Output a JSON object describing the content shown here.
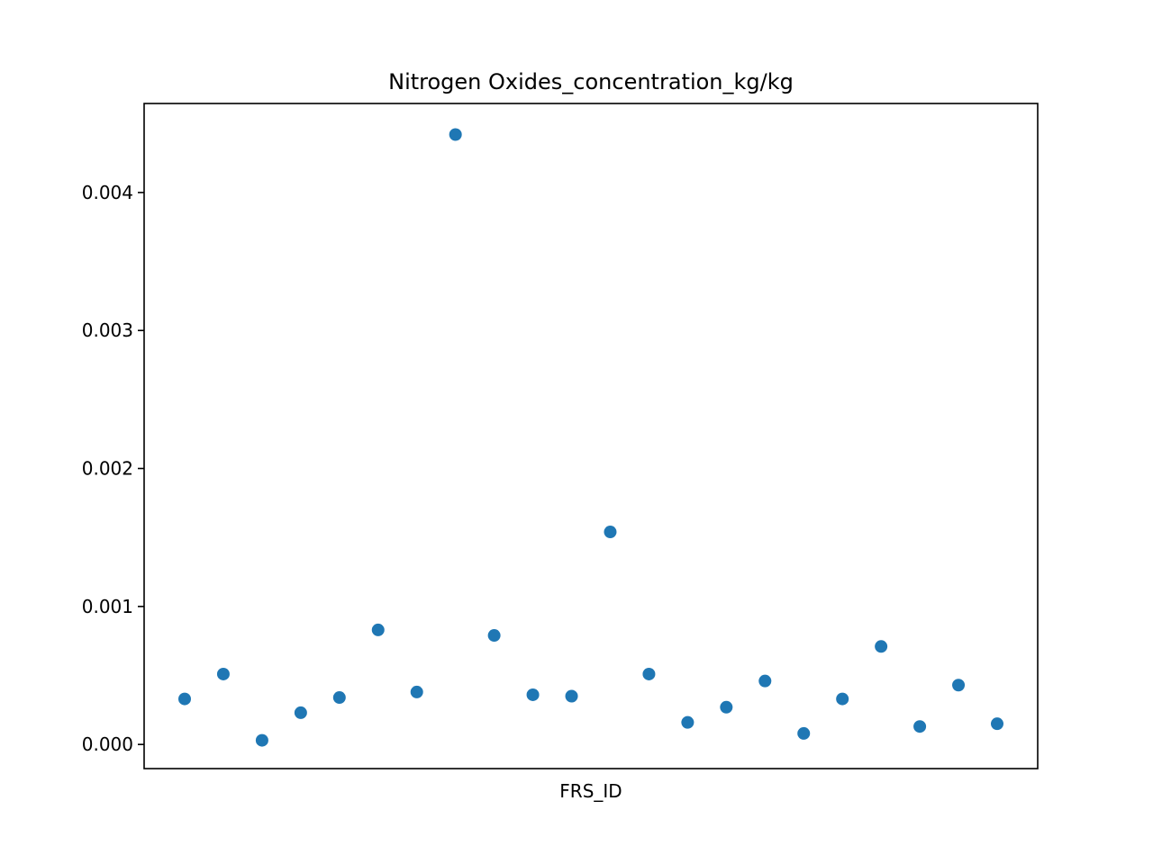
{
  "chart_data": {
    "type": "scatter",
    "title": "Nitrogen Oxides_concentration_kg/kg",
    "xlabel": "FRS_ID",
    "ylabel": "",
    "x_tick_labels_shown": false,
    "ylim": [
      -0.000175,
      0.004645
    ],
    "yticks": [
      0,
      0.001,
      0.002,
      0.003,
      0.004
    ],
    "ytick_labels": [
      "0.000",
      "0.001",
      "0.002",
      "0.003",
      "0.004"
    ],
    "grid": false,
    "legend": "none",
    "marker_color": "#1f77b4",
    "series": [
      {
        "values": [
          0.00033,
          0.00051,
          3e-05,
          0.00023,
          0.00034,
          0.00083,
          0.00038,
          0.00442,
          0.00079,
          0.00036,
          0.00035,
          0.00154,
          0.00051,
          0.00016,
          0.00027,
          0.00046,
          8e-05,
          0.00033,
          0.00071,
          0.00013,
          0.00043,
          0.00015
        ]
      }
    ]
  }
}
